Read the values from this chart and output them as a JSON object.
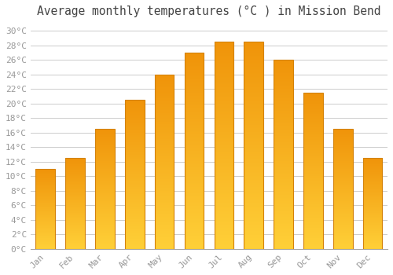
{
  "title": "Average monthly temperatures (°C ) in Mission Bend",
  "months": [
    "Jan",
    "Feb",
    "Mar",
    "Apr",
    "May",
    "Jun",
    "Jul",
    "Aug",
    "Sep",
    "Oct",
    "Nov",
    "Dec"
  ],
  "values": [
    11,
    12.5,
    16.5,
    20.5,
    24,
    27,
    28.5,
    28.5,
    26,
    21.5,
    16.5,
    12.5
  ],
  "bar_color_bottom": "#FFD060",
  "bar_color_top": "#F0940A",
  "bar_edge_color": "#D4820A",
  "background_color": "#FFFFFF",
  "grid_color": "#CCCCCC",
  "ylim": [
    0,
    31
  ],
  "yticks": [
    0,
    2,
    4,
    6,
    8,
    10,
    12,
    14,
    16,
    18,
    20,
    22,
    24,
    26,
    28,
    30
  ],
  "title_fontsize": 10.5,
  "tick_fontsize": 8,
  "tick_color": "#999999"
}
